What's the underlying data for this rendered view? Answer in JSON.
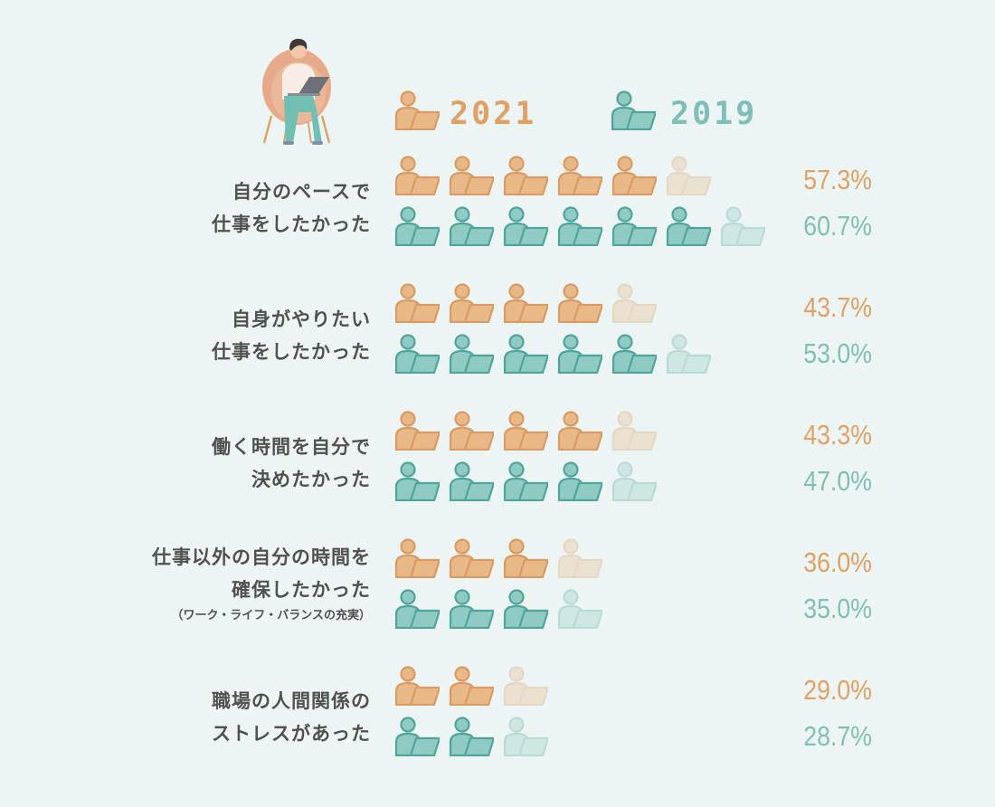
{
  "chart_data": {
    "type": "pictograph",
    "unit_per_icon": 10,
    "categories": [
      {
        "lines": [
          "自分のペースで",
          "仕事をしたかった"
        ],
        "note": ""
      },
      {
        "lines": [
          "自身がやりたい",
          "仕事をしたかった"
        ],
        "note": ""
      },
      {
        "lines": [
          "働く時間を自分で",
          "決めたかった"
        ],
        "note": ""
      },
      {
        "lines": [
          "仕事以外の自分の時間を",
          "確保したかった"
        ],
        "note": "（ワーク・ライフ・バランスの充実）"
      },
      {
        "lines": [
          "職場の人間関係の",
          "ストレスがあった"
        ],
        "note": ""
      }
    ],
    "series": [
      {
        "name": "2021",
        "color": "#e9b887",
        "stroke": "#d99a63",
        "text_color": "#e0a066",
        "values": [
          57.3,
          43.7,
          43.3,
          36.0,
          29.0
        ],
        "labels": [
          "57.3%",
          "43.7%",
          "43.3%",
          "36.0%",
          "29.0%"
        ]
      },
      {
        "name": "2019",
        "color": "#8fcbc3",
        "stroke": "#4fa59b",
        "text_color": "#7fbfb7",
        "values": [
          60.7,
          53.0,
          47.0,
          35.0,
          28.7
        ],
        "labels": [
          "60.7%",
          "53.0%",
          "47.0%",
          "35.0%",
          "28.7%"
        ]
      }
    ]
  },
  "illustration": "person-in-chair-with-laptop-icon"
}
